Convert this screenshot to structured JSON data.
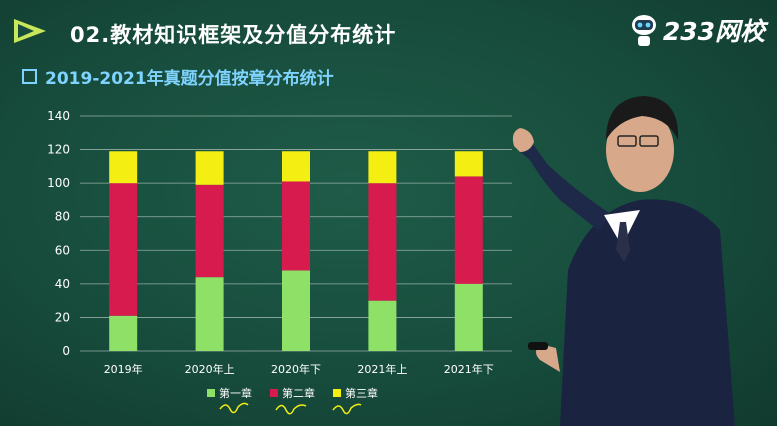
{
  "header": {
    "title": "02.教材知识框架及分值分布统计",
    "logo_text": "233网校"
  },
  "section": {
    "subtitle": "2019-2021年真题分值按章分布统计"
  },
  "colors": {
    "chapter1": "#8ee067",
    "chapter2": "#d81b4f",
    "chapter3": "#f4ee12",
    "subtitle": "#7fd3ff",
    "background": "#1b5241"
  },
  "chart_data": {
    "type": "bar",
    "stacked": true,
    "categories": [
      "2019年",
      "2020年上",
      "2020年下",
      "2021年上",
      "2021年下"
    ],
    "series": [
      {
        "name": "第一章",
        "values": [
          21,
          44,
          48,
          30,
          40
        ]
      },
      {
        "name": "第二章",
        "values": [
          79,
          55,
          53,
          70,
          64
        ]
      },
      {
        "name": "第三章",
        "values": [
          19,
          20,
          18,
          19,
          15
        ]
      }
    ],
    "title": "2019-2021年真题分值按章分布统计",
    "ylim": [
      0,
      140
    ],
    "yticks": [
      0,
      20,
      40,
      60,
      80,
      100,
      120,
      140
    ],
    "grid": true,
    "legend": "bottom"
  }
}
